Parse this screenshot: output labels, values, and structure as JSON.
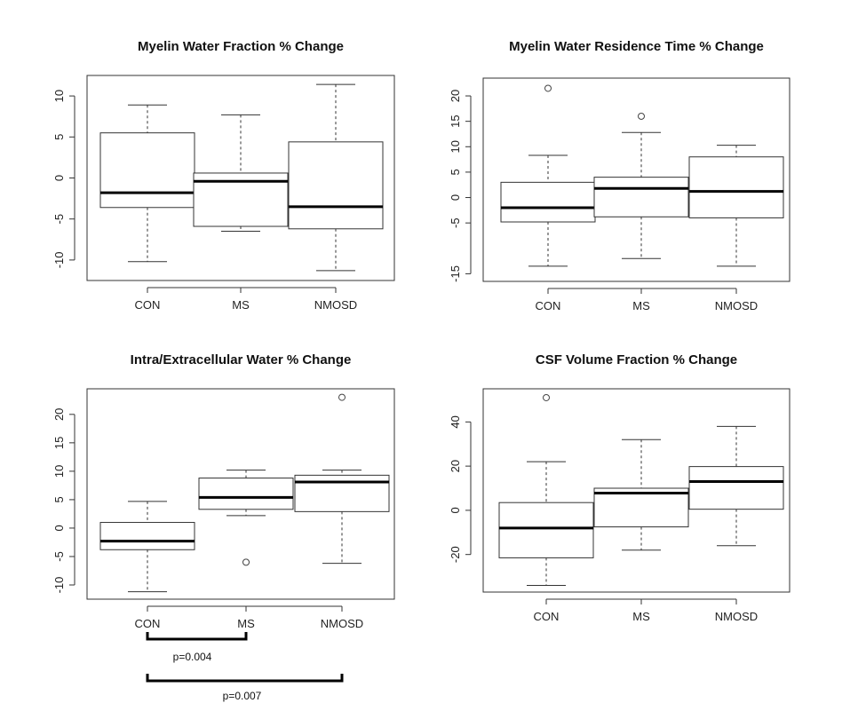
{
  "chart_data": [
    {
      "type": "boxplot",
      "title": "Myelin Water Fraction % Change",
      "categories": [
        "CON",
        "MS",
        "NMOSD"
      ],
      "yticks": [
        -10,
        -5,
        0,
        5,
        10
      ],
      "ytick_labels": [
        "-10",
        "-5",
        "0",
        "5",
        "10"
      ],
      "ylim": [
        -12.5,
        12.5
      ],
      "boxes": [
        {
          "min": -10.2,
          "q1": -3.6,
          "median": -1.8,
          "q3": 5.5,
          "max": 8.9,
          "outliers": []
        },
        {
          "min": -6.5,
          "q1": -5.9,
          "median": -0.4,
          "q3": 0.6,
          "max": 7.7,
          "outliers": []
        },
        {
          "min": -11.3,
          "q1": -6.2,
          "median": -3.5,
          "q3": 4.4,
          "max": 11.4,
          "outliers": []
        }
      ],
      "grid": false
    },
    {
      "type": "boxplot",
      "title": "Myelin Water Residence Time % Change",
      "categories": [
        "CON",
        "MS",
        "NMOSD"
      ],
      "yticks": [
        -15,
        -5,
        0,
        5,
        10,
        15,
        20
      ],
      "ytick_labels": [
        "-15",
        "-5",
        "0",
        "5",
        "10",
        "15",
        "20"
      ],
      "ylim": [
        -16.5,
        23.5
      ],
      "boxes": [
        {
          "min": -13.5,
          "q1": -4.8,
          "median": -2.0,
          "q3": 3.0,
          "max": 8.3,
          "outliers": [
            21.5
          ]
        },
        {
          "min": -12.0,
          "q1": -3.8,
          "median": 1.8,
          "q3": 4.0,
          "max": 12.8,
          "outliers": [
            16.0
          ]
        },
        {
          "min": -13.5,
          "q1": -4.0,
          "median": 1.2,
          "q3": 8.0,
          "max": 10.3,
          "outliers": []
        }
      ],
      "grid": false
    },
    {
      "type": "boxplot",
      "title": "Intra/Extracellular Water % Change",
      "categories": [
        "CON",
        "MS",
        "NMOSD"
      ],
      "yticks": [
        -10,
        -5,
        0,
        5,
        10,
        15,
        20
      ],
      "ytick_labels": [
        "-10",
        "-5",
        "0",
        "5",
        "10",
        "15",
        "20"
      ],
      "ylim": [
        -12.5,
        24.5
      ],
      "boxes": [
        {
          "min": -11.2,
          "q1": -3.8,
          "median": -2.3,
          "q3": 1.0,
          "max": 4.7,
          "outliers": []
        },
        {
          "min": 2.2,
          "q1": 3.3,
          "median": 5.4,
          "q3": 8.8,
          "max": 10.2,
          "outliers": [
            -6.0
          ]
        },
        {
          "min": -6.2,
          "q1": 2.9,
          "median": 8.1,
          "q3": 9.3,
          "max": 10.2,
          "outliers": [
            23.0
          ]
        }
      ],
      "grid": false,
      "annotations": [
        {
          "from": "CON",
          "to": "MS",
          "label": "p=0.004"
        },
        {
          "from": "CON",
          "to": "NMOSD",
          "label": "p=0.007"
        }
      ]
    },
    {
      "type": "boxplot",
      "title": "CSF Volume Fraction % Change",
      "categories": [
        "CON",
        "MS",
        "NMOSD"
      ],
      "yticks": [
        -20,
        0,
        20,
        40
      ],
      "ytick_labels": [
        "-20",
        "0",
        "20",
        "40"
      ],
      "ylim": [
        -37,
        55
      ],
      "boxes": [
        {
          "min": -34.0,
          "q1": -21.5,
          "median": -8.0,
          "q3": 3.5,
          "max": 22.0,
          "outliers": [
            51.0
          ]
        },
        {
          "min": -18.0,
          "q1": -7.5,
          "median": 7.8,
          "q3": 10.0,
          "max": 32.0,
          "outliers": []
        },
        {
          "min": -16.0,
          "q1": 0.5,
          "median": 13.0,
          "q3": 19.8,
          "max": 38.0,
          "outliers": []
        }
      ],
      "grid": false
    }
  ]
}
